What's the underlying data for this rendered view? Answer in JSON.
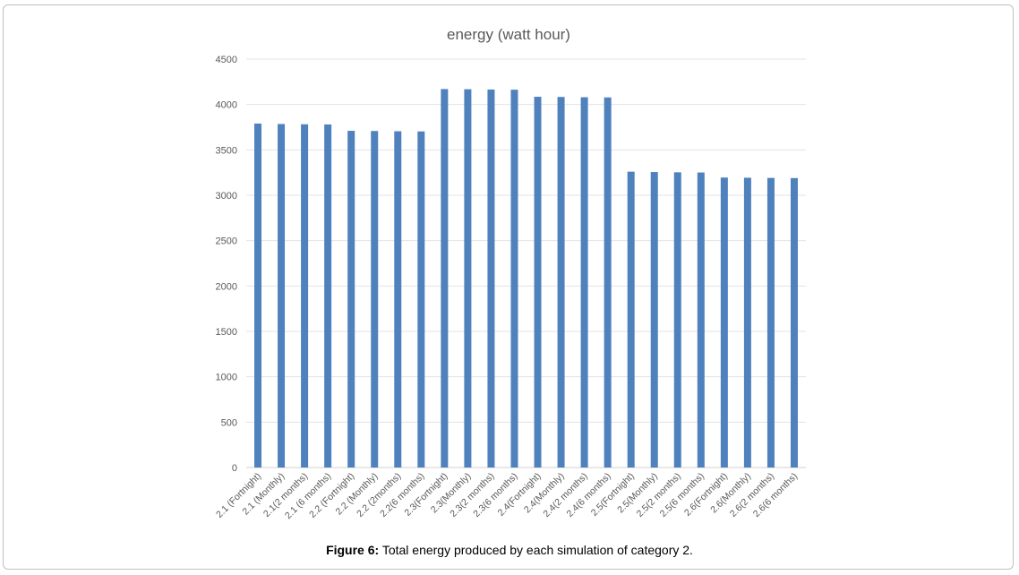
{
  "chart_data": {
    "type": "bar",
    "title": "energy (watt hour)",
    "xlabel": "",
    "ylabel": "",
    "ylim": [
      0,
      4500
    ],
    "yticks": [
      0,
      500,
      1000,
      1500,
      2000,
      2500,
      3000,
      3500,
      4000,
      4500
    ],
    "grid": true,
    "legend": "none",
    "bar_color": "#4f81bd",
    "categories": [
      "2.1 (Fortnight)",
      "2.1 (Monthly)",
      "2.1(2 months)",
      "2.1 (6 months)",
      "2.2 (Fortnight)",
      "2.2 (Monthly)",
      "2.2 (2months)",
      "2.2(6 months)",
      "2.3(Fortnight)",
      "2.3(Monthly)",
      "2.3(2 months)",
      "2.3(6 months)",
      "2.4(Fortnight)",
      "2.4(Monthly)",
      "2.4(2 months)",
      "2.4(6 months)",
      "2.5(Fortnight)",
      "2.5(Monthly)",
      "2.5(2 months)",
      "2.5(6 months)",
      "2.6(Fortnight)",
      "2.6(Monthly)",
      "2.6(2 months)",
      "2.6(6 months)"
    ],
    "values": [
      3790,
      3785,
      3782,
      3780,
      3710,
      3708,
      3705,
      3703,
      4170,
      4168,
      4165,
      4163,
      4085,
      4083,
      4080,
      4078,
      3260,
      3256,
      3253,
      3251,
      3195,
      3193,
      3191,
      3189
    ]
  },
  "caption": {
    "label": "Figure 6:",
    "text": " Total energy produced by each simulation of category 2."
  }
}
